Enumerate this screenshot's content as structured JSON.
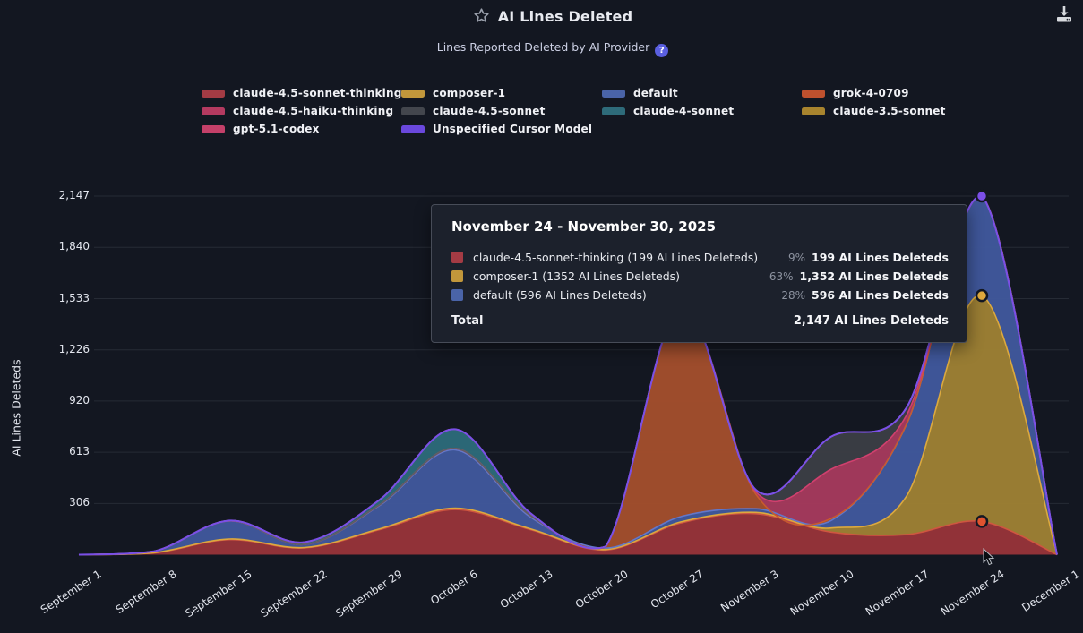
{
  "header": {
    "title": "AI Lines Deleted",
    "subtitle": "Lines Reported Deleted by AI Provider",
    "help_icon": "?",
    "icons": [
      "star-outline-icon",
      "download-icon"
    ]
  },
  "legend": {
    "columns": [
      [
        {
          "label": "claude-4.5-sonnet-thinking",
          "color": "#a43b44"
        },
        {
          "label": "claude-4.5-haiku-thinking",
          "color": "#b43a60"
        },
        {
          "label": "gpt-5.1-codex",
          "color": "#c44069"
        }
      ],
      [
        {
          "label": "composer-1",
          "color": "#c2973b"
        },
        {
          "label": "claude-4.5-sonnet",
          "color": "#43464d"
        },
        {
          "label": "Unspecified Cursor Model",
          "color": "#6a48dd"
        }
      ],
      [
        {
          "label": "default",
          "color": "#4a64a8"
        },
        {
          "label": "claude-4-sonnet",
          "color": "#2e6b7a"
        }
      ],
      [
        {
          "label": "grok-4-0709",
          "color": "#bf512e"
        },
        {
          "label": "claude-3.5-sonnet",
          "color": "#a8842e"
        }
      ]
    ]
  },
  "tooltip": {
    "title": "November 24 - November 30, 2025",
    "rows": [
      {
        "color": "#a43b44",
        "label": "claude-4.5-sonnet-thinking (199 AI Lines Deleteds)",
        "pct": "9%",
        "value": "199 AI Lines Deleteds"
      },
      {
        "color": "#c2973b",
        "label": "composer-1 (1352 AI Lines Deleteds)",
        "pct": "63%",
        "value": "1,352 AI Lines Deleteds"
      },
      {
        "color": "#4a64a8",
        "label": "default (596 AI Lines Deleteds)",
        "pct": "28%",
        "value": "596 AI Lines Deleteds"
      }
    ],
    "total_label": "Total",
    "total_value": "2,147 AI Lines Deleteds"
  },
  "chart_data": {
    "type": "area",
    "stacked": true,
    "title": "AI Lines Deleted",
    "ylabel": "AI Lines Deleteds",
    "ylim": [
      0,
      2147
    ],
    "grid": true,
    "legend_position": "top",
    "x_labels": [
      "September 1",
      "September 8",
      "September 15",
      "September 22",
      "September 29",
      "October 6",
      "October 13",
      "October 20",
      "October 27",
      "November 3",
      "November 10",
      "November 17",
      "November 24",
      "December 1"
    ],
    "y_ticks": [
      {
        "value": 306,
        "label": "306"
      },
      {
        "value": 613,
        "label": "613"
      },
      {
        "value": 920,
        "label": "920"
      },
      {
        "value": 1226,
        "label": "1,226"
      },
      {
        "value": 1533,
        "label": "1,533"
      },
      {
        "value": 1840,
        "label": "1,840"
      },
      {
        "value": 2147,
        "label": "2,147"
      }
    ],
    "series": [
      {
        "name": "claude-4.5-sonnet-thinking",
        "fill": "#963439",
        "stroke": "#cf5640",
        "values": [
          0,
          10,
          90,
          40,
          150,
          270,
          150,
          28,
          190,
          245,
          135,
          120,
          199,
          0
        ]
      },
      {
        "name": "composer-1",
        "fill": "#9d8034",
        "stroke": "#dca93e",
        "values": [
          0,
          2,
          4,
          3,
          5,
          8,
          5,
          3,
          6,
          8,
          25,
          230,
          1352,
          0
        ]
      },
      {
        "name": "default",
        "fill": "#40589b",
        "stroke": "#6377c9",
        "values": [
          0,
          8,
          108,
          18,
          140,
          350,
          70,
          8,
          32,
          22,
          45,
          430,
          596,
          0
        ]
      },
      {
        "name": "grok-4-0709",
        "fill": "#a24e2c",
        "stroke": "#c85a2e",
        "values": [
          0,
          0,
          0,
          0,
          4,
          8,
          10,
          6,
          1250,
          85,
          12,
          0,
          0,
          0
        ]
      },
      {
        "name": "claude-4.5-haiku-thinking",
        "fill": "#a43a5c",
        "stroke": "#d0406e",
        "values": [
          0,
          0,
          0,
          0,
          0,
          0,
          0,
          2,
          8,
          15,
          295,
          55,
          0,
          0
        ]
      },
      {
        "name": "claude-4.5-sonnet",
        "fill": "#3b3e44",
        "stroke": "#5b5e66",
        "values": [
          0,
          0,
          0,
          0,
          0,
          0,
          0,
          0,
          2,
          12,
          195,
          45,
          0,
          0
        ]
      },
      {
        "name": "claude-4-sonnet",
        "fill": "#2c6a79",
        "stroke": "#3f8f9b",
        "values": [
          0,
          0,
          2,
          14,
          30,
          115,
          14,
          2,
          0,
          0,
          0,
          0,
          0,
          0
        ]
      },
      {
        "name": "gpt-5.1-codex",
        "fill": "#c44069",
        "stroke": "#cf4a6e",
        "values": [
          0,
          0,
          0,
          0,
          0,
          0,
          0,
          0,
          0,
          0,
          0,
          0,
          0,
          0
        ]
      },
      {
        "name": "claude-3.5-sonnet",
        "fill": "#8a6f2a",
        "stroke": "#b08a2e",
        "values": [
          0,
          0,
          0,
          0,
          0,
          0,
          0,
          0,
          0,
          0,
          0,
          0,
          0,
          0
        ]
      },
      {
        "name": "Unspecified Cursor Model",
        "fill": "#5a3fd0",
        "stroke": "#7a4fe8",
        "values": [
          0,
          0,
          0,
          0,
          0,
          0,
          0,
          0,
          0,
          0,
          0,
          0,
          0,
          0
        ]
      }
    ],
    "markers": [
      {
        "x_index": 12,
        "cum_through": 0,
        "color": "#e0532f"
      },
      {
        "x_index": 12,
        "cum_through": 1,
        "color": "#e3ac3e"
      },
      {
        "x_index": 12,
        "cum_through": 2,
        "color": "#7c4fe8"
      }
    ]
  }
}
